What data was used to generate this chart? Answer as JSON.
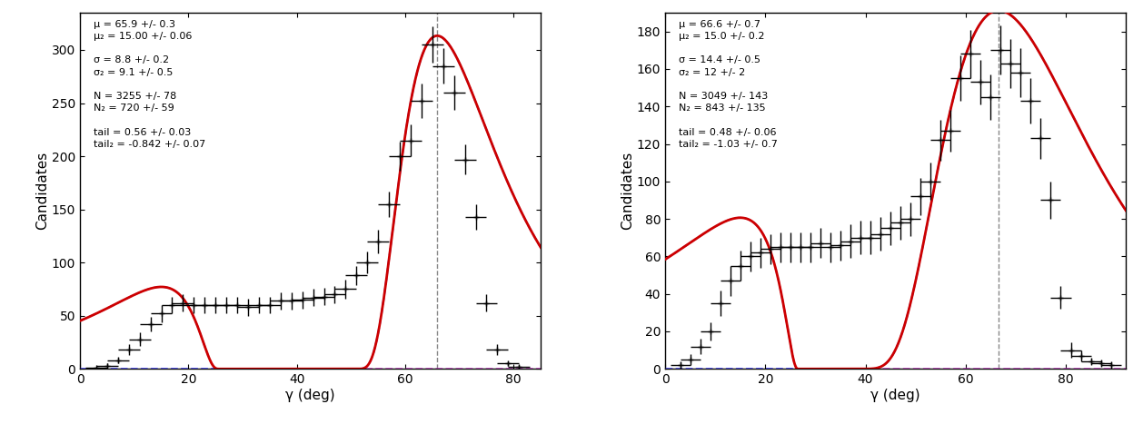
{
  "plot1": {
    "ylabel": "Candidates",
    "xlabel": "γ (deg)",
    "xlim": [
      0,
      85
    ],
    "ylim": [
      0,
      335
    ],
    "yticks": [
      0,
      50,
      100,
      150,
      200,
      250,
      300
    ],
    "xticks": [
      0,
      20,
      40,
      60,
      80
    ],
    "vline": 65.9,
    "params": {
      "mu": 65.9,
      "mu_err": "0.3",
      "mu2": "15.00",
      "mu2_err": "0.06",
      "sigma": "8.8",
      "sigma_err": "0.2",
      "sigma2": "9.1",
      "sigma2_err": "0.5",
      "N": 3255,
      "N_err": 78,
      "N2": 720,
      "N2_err": 59,
      "tail": "0.56",
      "tail_err": "0.03",
      "tail2": "-0.842",
      "tail2_err": "0.07"
    },
    "data_x": [
      3,
      5,
      7,
      9,
      11,
      13,
      15,
      17,
      19,
      21,
      23,
      25,
      27,
      29,
      31,
      33,
      35,
      37,
      39,
      41,
      43,
      45,
      47,
      49,
      51,
      53,
      55,
      57,
      59,
      61,
      63,
      65,
      67,
      69,
      71,
      73,
      75,
      77,
      79,
      81
    ],
    "data_y": [
      1,
      3,
      8,
      18,
      28,
      42,
      52,
      60,
      62,
      60,
      60,
      60,
      60,
      60,
      58,
      60,
      60,
      64,
      64,
      65,
      67,
      68,
      70,
      75,
      88,
      100,
      120,
      155,
      200,
      215,
      252,
      305,
      285,
      260,
      197,
      143,
      62,
      18,
      5,
      2
    ],
    "data_yerr": [
      1,
      2,
      3,
      5,
      6,
      7,
      8,
      8,
      8,
      8,
      8,
      8,
      8,
      8,
      8,
      8,
      8,
      8,
      8,
      8,
      8,
      8,
      8,
      9,
      9,
      10,
      11,
      12,
      14,
      15,
      16,
      17,
      17,
      16,
      14,
      12,
      8,
      5,
      2,
      2
    ],
    "data_xerr": [
      2,
      2,
      2,
      2,
      2,
      2,
      2,
      2,
      2,
      2,
      2,
      2,
      2,
      2,
      2,
      2,
      2,
      2,
      2,
      2,
      2,
      2,
      2,
      2,
      2,
      2,
      2,
      2,
      2,
      2,
      2,
      2,
      2,
      2,
      2,
      2,
      2,
      2,
      2,
      2
    ]
  },
  "plot2": {
    "ylabel": "Candidates",
    "xlabel": "γ (deg)",
    "xlim": [
      0,
      92
    ],
    "ylim": [
      0,
      190
    ],
    "yticks": [
      0,
      20,
      40,
      60,
      80,
      100,
      120,
      140,
      160,
      180
    ],
    "xticks": [
      0,
      20,
      40,
      60,
      80
    ],
    "vline": 66.6,
    "params": {
      "mu": 66.6,
      "mu_err": "0.7",
      "mu2": "15.0",
      "mu2_err": "0.2",
      "sigma": "14.4",
      "sigma_err": "0.5",
      "sigma2": 12,
      "sigma2_err": 2,
      "N": 3049,
      "N_err": 143,
      "N2": 843,
      "N2_err": 135,
      "tail": "0.48",
      "tail_err": "0.06",
      "tail2": "-1.03",
      "tail2_err": "0.7"
    },
    "data_x": [
      3,
      5,
      7,
      9,
      11,
      13,
      15,
      17,
      19,
      21,
      23,
      25,
      27,
      29,
      31,
      33,
      35,
      37,
      39,
      41,
      43,
      45,
      47,
      49,
      51,
      53,
      55,
      57,
      59,
      61,
      63,
      65,
      67,
      69,
      71,
      73,
      75,
      77,
      79,
      81,
      83,
      85,
      87,
      89
    ],
    "data_y": [
      2,
      5,
      12,
      20,
      35,
      47,
      55,
      60,
      62,
      64,
      65,
      65,
      65,
      65,
      67,
      65,
      66,
      68,
      70,
      70,
      72,
      75,
      78,
      80,
      92,
      100,
      122,
      127,
      155,
      168,
      153,
      145,
      170,
      163,
      158,
      143,
      123,
      90,
      38,
      10,
      7,
      4,
      3,
      2
    ],
    "data_yerr": [
      2,
      3,
      4,
      5,
      7,
      8,
      8,
      8,
      8,
      8,
      8,
      8,
      8,
      8,
      8,
      8,
      8,
      9,
      9,
      9,
      9,
      9,
      9,
      9,
      10,
      10,
      11,
      11,
      12,
      13,
      12,
      12,
      13,
      13,
      13,
      12,
      11,
      10,
      6,
      4,
      3,
      2,
      2,
      2
    ],
    "data_xerr": [
      2,
      2,
      2,
      2,
      2,
      2,
      2,
      2,
      2,
      2,
      2,
      2,
      2,
      2,
      2,
      2,
      2,
      2,
      2,
      2,
      2,
      2,
      2,
      2,
      2,
      2,
      2,
      2,
      2,
      2,
      2,
      2,
      2,
      2,
      2,
      2,
      2,
      2,
      2,
      2,
      2,
      2,
      2,
      2
    ]
  },
  "colors": {
    "data": "#000000",
    "total_fit": "#cc0000",
    "component1": "#4444ff",
    "component2": "#cc44cc",
    "vline": "#888888"
  },
  "background": "#ffffff"
}
